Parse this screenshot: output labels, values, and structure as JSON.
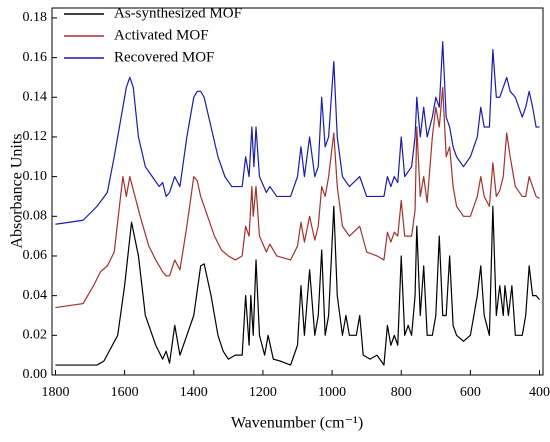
{
  "chart_data": {
    "type": "line",
    "xlabel": "Wavenumber (cm⁻¹)",
    "ylabel": "Absorbance Units",
    "xlim": [
      1810,
      390
    ],
    "xticks": [
      1800,
      1600,
      1400,
      1200,
      1000,
      800,
      600,
      400
    ],
    "ylim": [
      0,
      0.185
    ],
    "yticks": [
      {
        "value": 0,
        "label": "0.00"
      },
      {
        "value": 0.02,
        "label": "0.02"
      },
      {
        "value": 0.04,
        "label": "0.04"
      },
      {
        "value": 0.06,
        "label": "0.06"
      },
      {
        "value": 0.08,
        "label": "0.08"
      },
      {
        "value": 0.1,
        "label": "0.10"
      },
      {
        "value": 0.12,
        "label": "0.12"
      },
      {
        "value": 0.14,
        "label": "0.14"
      },
      {
        "value": 0.16,
        "label": "0.16"
      },
      {
        "value": 0.18,
        "label": "0.18"
      }
    ],
    "legend": "upper left",
    "series": [
      {
        "name": "As-synthesized MOF",
        "color": "#000000",
        "x": [
          1800,
          1680,
          1660,
          1620,
          1600,
          1580,
          1560,
          1540,
          1510,
          1490,
          1480,
          1470,
          1455,
          1440,
          1420,
          1400,
          1380,
          1370,
          1350,
          1330,
          1315,
          1300,
          1280,
          1260,
          1250,
          1240,
          1235,
          1228,
          1220,
          1210,
          1195,
          1185,
          1170,
          1150,
          1120,
          1100,
          1090,
          1080,
          1065,
          1050,
          1040,
          1030,
          1020,
          1010,
          995,
          985,
          970,
          960,
          950,
          930,
          920,
          910,
          890,
          870,
          850,
          840,
          830,
          820,
          810,
          800,
          790,
          780,
          770,
          760,
          755,
          745,
          735,
          725,
          710,
          700,
          690,
          680,
          670,
          660,
          650,
          640,
          620,
          600,
          580,
          570,
          560,
          545,
          535,
          525,
          515,
          505,
          500,
          490,
          480,
          470,
          460,
          450,
          440,
          430,
          420,
          410,
          400
        ],
        "values": [
          0.005,
          0.005,
          0.007,
          0.02,
          0.045,
          0.077,
          0.06,
          0.03,
          0.015,
          0.008,
          0.012,
          0.006,
          0.025,
          0.01,
          0.02,
          0.03,
          0.055,
          0.056,
          0.04,
          0.02,
          0.012,
          0.008,
          0.01,
          0.01,
          0.04,
          0.015,
          0.04,
          0.02,
          0.058,
          0.02,
          0.01,
          0.02,
          0.008,
          0.007,
          0.005,
          0.015,
          0.045,
          0.02,
          0.053,
          0.02,
          0.03,
          0.063,
          0.02,
          0.03,
          0.085,
          0.04,
          0.02,
          0.03,
          0.02,
          0.02,
          0.03,
          0.01,
          0.008,
          0.01,
          0.005,
          0.025,
          0.015,
          0.02,
          0.015,
          0.06,
          0.02,
          0.025,
          0.02,
          0.04,
          0.075,
          0.03,
          0.055,
          0.02,
          0.02,
          0.03,
          0.07,
          0.03,
          0.03,
          0.06,
          0.025,
          0.02,
          0.017,
          0.02,
          0.04,
          0.055,
          0.03,
          0.02,
          0.085,
          0.03,
          0.045,
          0.03,
          0.045,
          0.03,
          0.045,
          0.02,
          0.02,
          0.02,
          0.03,
          0.055,
          0.04,
          0.04,
          0.038
        ]
      },
      {
        "name": "Activated MOF",
        "color": "#a3322a",
        "x": [
          1800,
          1720,
          1690,
          1670,
          1650,
          1630,
          1615,
          1605,
          1595,
          1585,
          1570,
          1555,
          1530,
          1510,
          1490,
          1480,
          1470,
          1455,
          1440,
          1420,
          1400,
          1390,
          1380,
          1360,
          1340,
          1320,
          1300,
          1280,
          1260,
          1250,
          1240,
          1232,
          1228,
          1220,
          1210,
          1190,
          1180,
          1160,
          1120,
          1100,
          1090,
          1080,
          1065,
          1050,
          1040,
          1030,
          1020,
          1010,
          995,
          985,
          970,
          950,
          920,
          900,
          870,
          850,
          840,
          830,
          820,
          810,
          800,
          790,
          770,
          760,
          755,
          745,
          735,
          725,
          710,
          700,
          690,
          680,
          670,
          660,
          650,
          640,
          620,
          600,
          580,
          570,
          560,
          545,
          535,
          525,
          515,
          505,
          495,
          485,
          470,
          450,
          440,
          430,
          420,
          410,
          400
        ],
        "values": [
          0.034,
          0.036,
          0.045,
          0.052,
          0.055,
          0.062,
          0.085,
          0.1,
          0.09,
          0.1,
          0.09,
          0.08,
          0.065,
          0.058,
          0.052,
          0.05,
          0.05,
          0.058,
          0.053,
          0.075,
          0.1,
          0.098,
          0.09,
          0.08,
          0.07,
          0.063,
          0.06,
          0.058,
          0.06,
          0.075,
          0.07,
          0.095,
          0.08,
          0.095,
          0.07,
          0.062,
          0.066,
          0.06,
          0.058,
          0.065,
          0.077,
          0.067,
          0.08,
          0.068,
          0.075,
          0.095,
          0.09,
          0.1,
          0.122,
          0.095,
          0.075,
          0.07,
          0.075,
          0.062,
          0.06,
          0.058,
          0.072,
          0.067,
          0.072,
          0.07,
          0.088,
          0.07,
          0.07,
          0.083,
          0.125,
          0.09,
          0.1,
          0.087,
          0.12,
          0.135,
          0.125,
          0.145,
          0.11,
          0.115,
          0.095,
          0.085,
          0.08,
          0.08,
          0.09,
          0.1,
          0.09,
          0.085,
          0.107,
          0.09,
          0.093,
          0.1,
          0.122,
          0.11,
          0.095,
          0.09,
          0.09,
          0.1,
          0.095,
          0.09,
          0.089
        ]
      },
      {
        "name": "Recovered MOF",
        "color": "#1c1cab",
        "x": [
          1800,
          1720,
          1680,
          1650,
          1630,
          1610,
          1595,
          1585,
          1575,
          1560,
          1540,
          1520,
          1500,
          1490,
          1480,
          1470,
          1455,
          1440,
          1420,
          1400,
          1390,
          1380,
          1370,
          1350,
          1330,
          1310,
          1290,
          1260,
          1250,
          1240,
          1232,
          1226,
          1220,
          1210,
          1190,
          1180,
          1160,
          1120,
          1100,
          1090,
          1080,
          1065,
          1050,
          1040,
          1030,
          1020,
          1010,
          995,
          985,
          970,
          950,
          920,
          900,
          870,
          850,
          840,
          830,
          820,
          810,
          800,
          790,
          770,
          760,
          755,
          745,
          735,
          725,
          710,
          700,
          690,
          680,
          670,
          660,
          650,
          640,
          620,
          600,
          580,
          570,
          560,
          545,
          535,
          525,
          515,
          505,
          495,
          485,
          470,
          450,
          440,
          430,
          420,
          410,
          400
        ],
        "values": [
          0.076,
          0.078,
          0.085,
          0.092,
          0.11,
          0.13,
          0.145,
          0.15,
          0.145,
          0.12,
          0.105,
          0.1,
          0.095,
          0.097,
          0.09,
          0.092,
          0.1,
          0.095,
          0.12,
          0.14,
          0.143,
          0.143,
          0.14,
          0.125,
          0.11,
          0.1,
          0.095,
          0.095,
          0.11,
          0.1,
          0.125,
          0.105,
          0.125,
          0.1,
          0.092,
          0.095,
          0.09,
          0.09,
          0.1,
          0.115,
          0.1,
          0.12,
          0.1,
          0.105,
          0.14,
          0.115,
          0.12,
          0.158,
          0.12,
          0.1,
          0.095,
          0.1,
          0.09,
          0.09,
          0.09,
          0.1,
          0.095,
          0.1,
          0.097,
          0.12,
          0.1,
          0.105,
          0.12,
          0.14,
          0.12,
          0.135,
          0.12,
          0.13,
          0.14,
          0.135,
          0.168,
          0.13,
          0.125,
          0.115,
          0.11,
          0.105,
          0.11,
          0.12,
          0.135,
          0.125,
          0.125,
          0.164,
          0.14,
          0.14,
          0.145,
          0.15,
          0.143,
          0.14,
          0.13,
          0.135,
          0.143,
          0.135,
          0.125,
          0.125
        ]
      }
    ]
  }
}
